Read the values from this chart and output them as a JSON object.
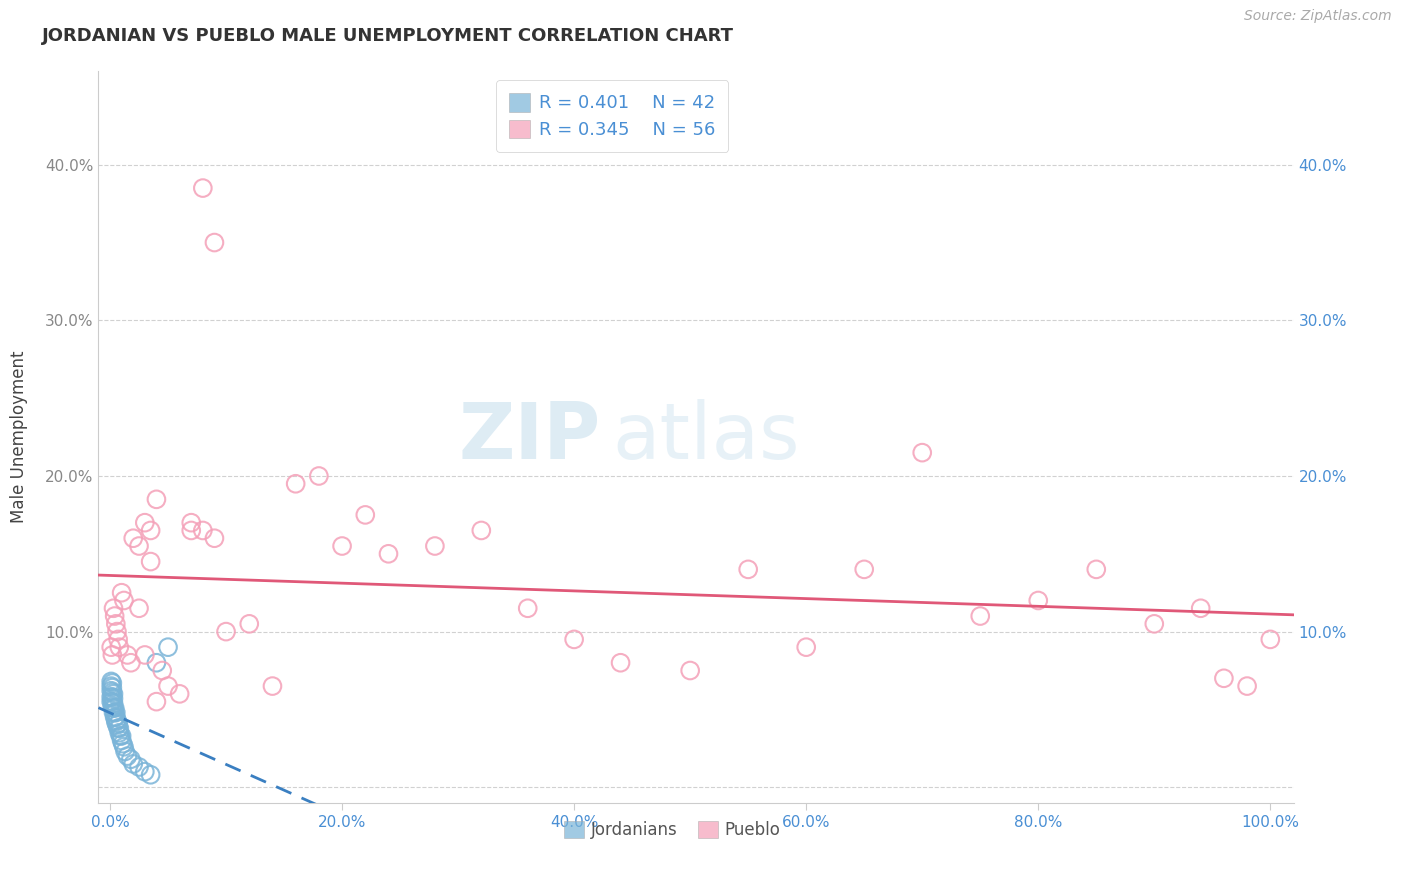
{
  "title": "JORDANIAN VS PUEBLO MALE UNEMPLOYMENT CORRELATION CHART",
  "source_text": "Source: ZipAtlas.com",
  "xlabel": "",
  "ylabel": "Male Unemployment",
  "xlim": [
    -0.01,
    1.02
  ],
  "ylim": [
    -0.01,
    0.46
  ],
  "xticks": [
    0.0,
    0.2,
    0.4,
    0.6,
    0.8,
    1.0
  ],
  "xtick_labels": [
    "0.0%",
    "20.0%",
    "40.0%",
    "60.0%",
    "80.0%",
    "100.0%"
  ],
  "yticks": [
    0.0,
    0.1,
    0.2,
    0.3,
    0.4
  ],
  "ytick_labels_left": [
    "",
    "10.0%",
    "20.0%",
    "30.0%",
    "40.0%"
  ],
  "ytick_labels_right": [
    "",
    "10.0%",
    "20.0%",
    "30.0%",
    "40.0%"
  ],
  "legend_r1": "R = 0.401",
  "legend_n1": "N = 42",
  "legend_r2": "R = 0.345",
  "legend_n2": "N = 56",
  "jordanian_color": "#7ab4d8",
  "pueblo_color": "#f4a0b8",
  "jordanian_line_color": "#3a7fc1",
  "pueblo_line_color": "#e05878",
  "tick_color_right": "#4a8fd4",
  "tick_color_bottom": "#4a8fd4",
  "watermark_zip": "ZIP",
  "watermark_atlas": "atlas",
  "background_color": "#ffffff",
  "grid_color": "#cccccc",
  "jordanian_x": [
    0.001,
    0.001,
    0.001,
    0.001,
    0.001,
    0.002,
    0.002,
    0.002,
    0.002,
    0.002,
    0.002,
    0.003,
    0.003,
    0.003,
    0.003,
    0.003,
    0.004,
    0.004,
    0.004,
    0.005,
    0.005,
    0.005,
    0.006,
    0.006,
    0.007,
    0.007,
    0.008,
    0.008,
    0.009,
    0.01,
    0.01,
    0.011,
    0.012,
    0.013,
    0.015,
    0.018,
    0.02,
    0.025,
    0.03,
    0.035,
    0.04,
    0.05
  ],
  "jordanian_y": [
    0.055,
    0.058,
    0.062,
    0.065,
    0.068,
    0.052,
    0.055,
    0.058,
    0.061,
    0.064,
    0.067,
    0.048,
    0.051,
    0.054,
    0.057,
    0.06,
    0.045,
    0.048,
    0.051,
    0.042,
    0.045,
    0.048,
    0.04,
    0.043,
    0.038,
    0.041,
    0.035,
    0.038,
    0.033,
    0.03,
    0.033,
    0.028,
    0.026,
    0.023,
    0.02,
    0.018,
    0.015,
    0.013,
    0.01,
    0.008,
    0.08,
    0.09
  ],
  "pueblo_x": [
    0.001,
    0.002,
    0.003,
    0.004,
    0.005,
    0.006,
    0.007,
    0.008,
    0.01,
    0.012,
    0.015,
    0.018,
    0.02,
    0.025,
    0.03,
    0.035,
    0.04,
    0.05,
    0.06,
    0.07,
    0.08,
    0.09,
    0.1,
    0.12,
    0.14,
    0.16,
    0.18,
    0.2,
    0.22,
    0.24,
    0.28,
    0.32,
    0.36,
    0.4,
    0.44,
    0.5,
    0.55,
    0.6,
    0.65,
    0.7,
    0.75,
    0.8,
    0.85,
    0.9,
    0.94,
    0.96,
    0.98,
    1.0,
    0.025,
    0.03,
    0.035,
    0.04,
    0.045,
    0.07,
    0.08,
    0.09
  ],
  "pueblo_y": [
    0.09,
    0.085,
    0.115,
    0.11,
    0.105,
    0.1,
    0.095,
    0.09,
    0.125,
    0.12,
    0.085,
    0.08,
    0.16,
    0.155,
    0.17,
    0.165,
    0.185,
    0.065,
    0.06,
    0.17,
    0.165,
    0.16,
    0.1,
    0.105,
    0.065,
    0.195,
    0.2,
    0.155,
    0.175,
    0.15,
    0.155,
    0.165,
    0.115,
    0.095,
    0.08,
    0.075,
    0.14,
    0.09,
    0.14,
    0.215,
    0.11,
    0.12,
    0.14,
    0.105,
    0.115,
    0.07,
    0.065,
    0.095,
    0.115,
    0.085,
    0.145,
    0.055,
    0.075,
    0.165,
    0.385,
    0.35
  ]
}
